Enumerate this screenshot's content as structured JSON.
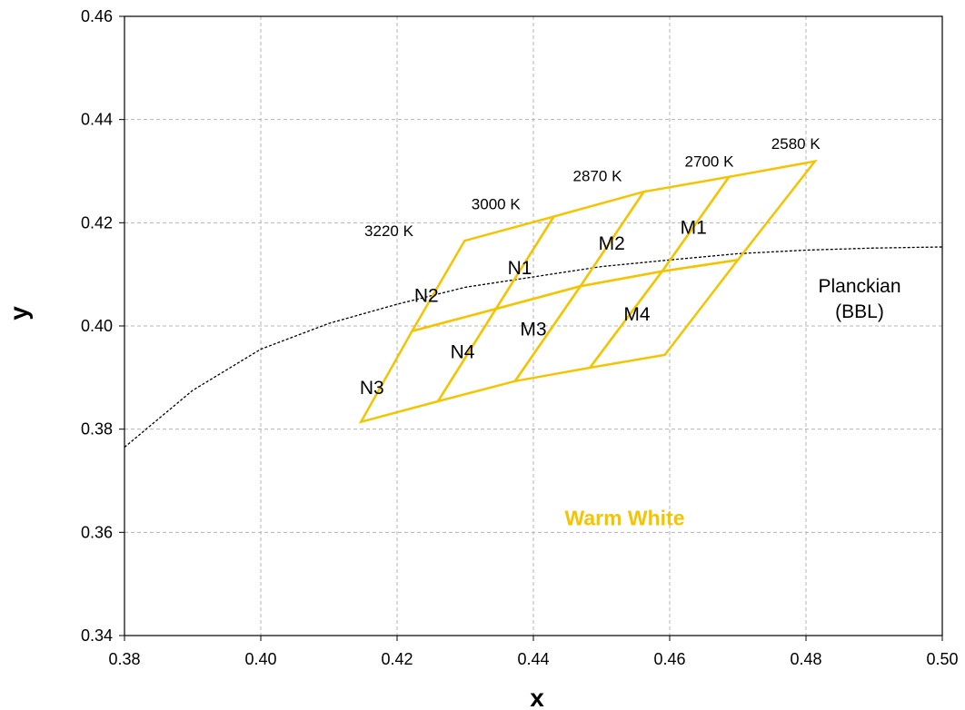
{
  "chart_data": {
    "type": "line",
    "xlabel": "x",
    "ylabel": "y",
    "xlim": [
      0.38,
      0.5
    ],
    "ylim": [
      0.34,
      0.46
    ],
    "x_ticks": [
      0.38,
      0.4,
      0.42,
      0.44,
      0.46,
      0.48,
      0.5
    ],
    "y_ticks": [
      0.34,
      0.36,
      0.38,
      0.4,
      0.42,
      0.44,
      0.46
    ],
    "x_tick_labels": [
      "0.38",
      "0.40",
      "0.42",
      "0.44",
      "0.46",
      "0.48",
      "0.50"
    ],
    "y_tick_labels": [
      "0.34",
      "0.36",
      "0.38",
      "0.40",
      "0.42",
      "0.44",
      "0.46"
    ],
    "grid": true,
    "colors": {
      "bins": "#F5C400",
      "planckian": "#000000",
      "grid": "#b4b4b4"
    },
    "planckian": {
      "label_line1": "Planckian",
      "label_line2": "(BBL)",
      "points": [
        [
          0.38,
          0.3765
        ],
        [
          0.39,
          0.3875
        ],
        [
          0.4,
          0.3955
        ],
        [
          0.41,
          0.4005
        ],
        [
          0.42,
          0.4042
        ],
        [
          0.43,
          0.4075
        ],
        [
          0.44,
          0.4095
        ],
        [
          0.45,
          0.4115
        ],
        [
          0.46,
          0.4128
        ],
        [
          0.47,
          0.414
        ],
        [
          0.48,
          0.4147
        ],
        [
          0.49,
          0.4151
        ],
        [
          0.5,
          0.4153
        ]
      ]
    },
    "bins": [
      {
        "name": "N2",
        "corners": [
          [
            0.4299,
            0.4165
          ],
          [
            0.443,
            0.4212
          ],
          [
            0.4345,
            0.4033
          ],
          [
            0.4222,
            0.399
          ]
        ],
        "label_pos": [
          0.4243,
          0.4059
        ]
      },
      {
        "name": "N1",
        "corners": [
          [
            0.443,
            0.4212
          ],
          [
            0.4562,
            0.426
          ],
          [
            0.4469,
            0.4077
          ],
          [
            0.4345,
            0.4033
          ]
        ],
        "label_pos": [
          0.438,
          0.4113
        ]
      },
      {
        "name": "M2",
        "corners": [
          [
            0.4562,
            0.426
          ],
          [
            0.4687,
            0.4289
          ],
          [
            0.4589,
            0.4106
          ],
          [
            0.4469,
            0.4077
          ]
        ],
        "label_pos": [
          0.4515,
          0.416
        ]
      },
      {
        "name": "M1",
        "corners": [
          [
            0.4687,
            0.4289
          ],
          [
            0.4813,
            0.4319
          ],
          [
            0.47,
            0.4128
          ],
          [
            0.4589,
            0.4106
          ]
        ],
        "label_pos": [
          0.4635,
          0.4191
        ]
      },
      {
        "name": "N3",
        "corners": [
          [
            0.4222,
            0.399
          ],
          [
            0.4345,
            0.4033
          ],
          [
            0.426,
            0.3854
          ],
          [
            0.4147,
            0.3814
          ]
        ],
        "label_pos": [
          0.4163,
          0.388
        ]
      },
      {
        "name": "N4",
        "corners": [
          [
            0.4345,
            0.4033
          ],
          [
            0.4469,
            0.4077
          ],
          [
            0.4373,
            0.3893
          ],
          [
            0.426,
            0.3854
          ]
        ],
        "label_pos": [
          0.4296,
          0.395
        ]
      },
      {
        "name": "M3",
        "corners": [
          [
            0.4469,
            0.4077
          ],
          [
            0.4589,
            0.4106
          ],
          [
            0.4483,
            0.3919
          ],
          [
            0.4373,
            0.3893
          ]
        ],
        "label_pos": [
          0.44,
          0.3994
        ]
      },
      {
        "name": "M4",
        "corners": [
          [
            0.4589,
            0.4106
          ],
          [
            0.47,
            0.4128
          ],
          [
            0.4593,
            0.3944
          ],
          [
            0.4483,
            0.3919
          ]
        ],
        "label_pos": [
          0.4552,
          0.4023
        ]
      }
    ],
    "cct_labels": [
      {
        "text": "3220 K",
        "pos": [
          0.4188,
          0.4185
        ]
      },
      {
        "text": "3000 K",
        "pos": [
          0.4345,
          0.4237
        ]
      },
      {
        "text": "2870 K",
        "pos": [
          0.4494,
          0.4291
        ]
      },
      {
        "text": "2700 K",
        "pos": [
          0.4658,
          0.4319
        ]
      },
      {
        "text": "2580 K",
        "pos": [
          0.4785,
          0.4354
        ]
      }
    ],
    "annotation": {
      "text": "Warm White",
      "pos": [
        0.4534,
        0.3628
      ]
    }
  }
}
